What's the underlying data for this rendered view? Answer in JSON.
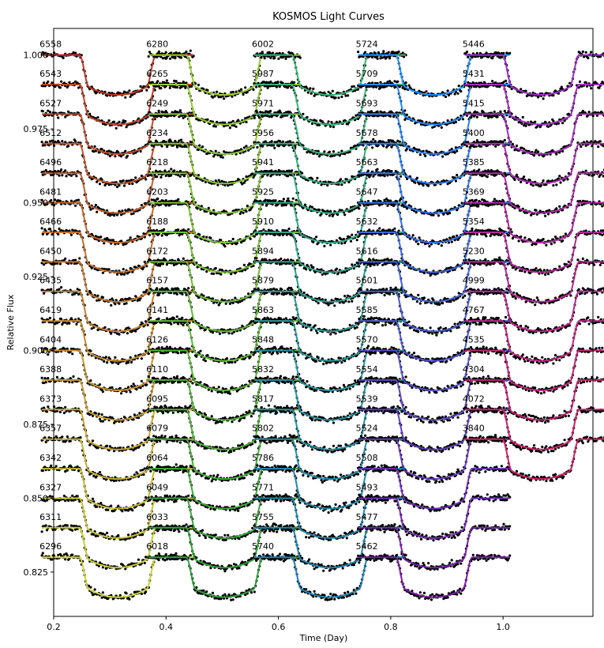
{
  "chart_data": {
    "type": "line",
    "title": "KOSMOS Light Curves",
    "xlabel": "Time (Day)",
    "ylabel": "Relative Flux",
    "xlim": [
      0.2,
      1.16
    ],
    "ylim": [
      0.81,
      1.009
    ],
    "x_ticks": [
      "0.2",
      "0.4",
      "0.6",
      "0.8",
      "1.0"
    ],
    "x_tick_values": [
      0.2,
      0.4,
      0.6,
      0.8,
      1.0
    ],
    "y_ticks": [
      "1.000",
      "0.975",
      "0.950",
      "0.925",
      "0.900",
      "0.875",
      "0.850",
      "0.825"
    ],
    "y_tick_values": [
      1.0,
      0.975,
      0.95,
      0.925,
      0.9,
      0.875,
      0.85,
      0.825
    ],
    "grid": false,
    "transit_depth": 0.0135,
    "baseline_offset_step": 0.01,
    "groups": [
      {
        "center": 0.314,
        "half_width": 0.068,
        "color_start": "#c0392b",
        "color_end": "#c8d53a",
        "labels": [
          "6558",
          "6543",
          "6527",
          "6512",
          "6496",
          "6481",
          "6466",
          "6450",
          "6435",
          "6419",
          "6404",
          "6388",
          "6373",
          "6357",
          "6342",
          "6327",
          "6311",
          "6296"
        ]
      },
      {
        "center": 0.504,
        "half_width": 0.068,
        "color_start": "#9acd32",
        "color_end": "#2e9f3e",
        "labels": [
          "6280",
          "6265",
          "6249",
          "6234",
          "6218",
          "6203",
          "6188",
          "6172",
          "6157",
          "6141",
          "6126",
          "6110",
          "6095",
          "6079",
          "6064",
          "6049",
          "6033",
          "6018"
        ]
      },
      {
        "center": 0.692,
        "half_width": 0.068,
        "color_start": "#3cb371",
        "color_end": "#1f7fb4",
        "labels": [
          "6002",
          "5987",
          "5971",
          "5956",
          "5941",
          "5925",
          "5910",
          "5894",
          "5879",
          "5863",
          "5848",
          "5832",
          "5817",
          "5802",
          "5786",
          "5771",
          "5755",
          "5740"
        ]
      },
      {
        "center": 0.877,
        "half_width": 0.068,
        "color_start": "#1e90ff",
        "color_end": "#7a1fa2",
        "labels": [
          "5724",
          "5709",
          "5693",
          "5678",
          "5663",
          "5647",
          "5632",
          "5616",
          "5601",
          "5585",
          "5570",
          "5554",
          "5539",
          "5524",
          "5508",
          "5493",
          "5477",
          "5462"
        ]
      },
      {
        "center": 1.067,
        "half_width": 0.068,
        "color_start": "#9b30c8",
        "color_end": "#d02060",
        "labels": [
          "5446",
          "5431",
          "5415",
          "5400",
          "5385",
          "5369",
          "5354",
          "5230",
          "4999",
          "4767",
          "4535",
          "4304",
          "4072",
          "3840"
        ]
      }
    ]
  }
}
